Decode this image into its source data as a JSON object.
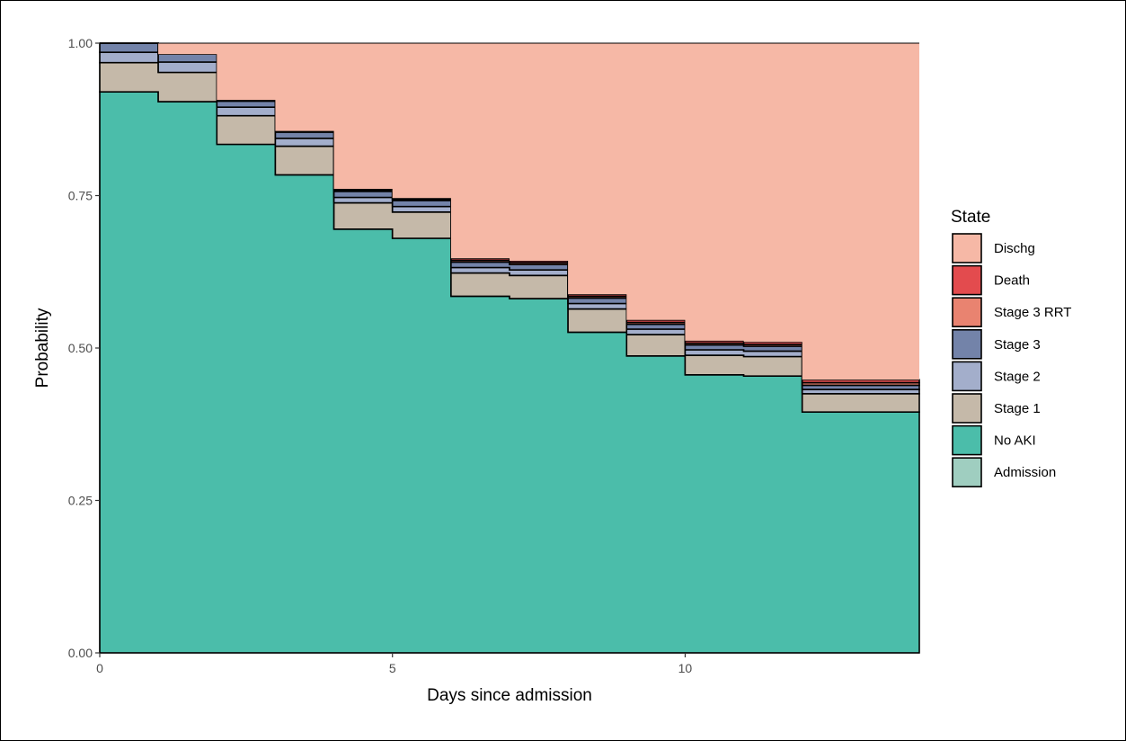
{
  "chart_data": {
    "type": "area",
    "stacked": true,
    "step": true,
    "xlabel": "Days since admission",
    "ylabel": "Probability",
    "xlim": [
      0,
      14
    ],
    "ylim": [
      0,
      1
    ],
    "x_ticks": [
      {
        "value": 0,
        "label": "0"
      },
      {
        "value": 5,
        "label": "5"
      },
      {
        "value": 10,
        "label": "10"
      }
    ],
    "y_ticks": [
      {
        "value": 0,
        "label": "0.00"
      },
      {
        "value": 0.25,
        "label": "0.25"
      },
      {
        "value": 0.5,
        "label": "0.50"
      },
      {
        "value": 0.75,
        "label": "0.75"
      },
      {
        "value": 1,
        "label": "1.00"
      }
    ],
    "grid": false,
    "legend": {
      "title": "State",
      "position": "right",
      "entries": [
        "Dischg",
        "Death",
        "Stage 3 RRT",
        "Stage 3",
        "Stage 2",
        "Stage 1",
        "No AKI",
        "Admission"
      ]
    },
    "x": [
      0,
      1,
      2,
      3,
      4,
      5,
      6,
      7,
      8,
      9,
      10,
      11,
      12,
      13
    ],
    "series": [
      {
        "name": "No AKI",
        "color": "#4BBDAA",
        "values": [
          0.92,
          0.904,
          0.834,
          0.784,
          0.695,
          0.68,
          0.585,
          0.581,
          0.526,
          0.487,
          0.456,
          0.454,
          0.395,
          0.395
        ]
      },
      {
        "name": "Stage 1",
        "color": "#C5B9A9",
        "values": [
          0.048,
          0.048,
          0.047,
          0.047,
          0.043,
          0.043,
          0.038,
          0.038,
          0.038,
          0.035,
          0.032,
          0.032,
          0.03,
          0.03
        ]
      },
      {
        "name": "Stage 2",
        "color": "#A3AECB",
        "values": [
          0.017,
          0.017,
          0.014,
          0.013,
          0.009,
          0.009,
          0.009,
          0.009,
          0.009,
          0.009,
          0.009,
          0.009,
          0.007,
          0.007
        ]
      },
      {
        "name": "Stage 3",
        "color": "#7383A9",
        "values": [
          0.015,
          0.013,
          0.01,
          0.01,
          0.01,
          0.01,
          0.009,
          0.009,
          0.009,
          0.008,
          0.008,
          0.008,
          0.007,
          0.007
        ]
      },
      {
        "name": "Stage 3 RRT",
        "color": "#E98370",
        "values": [
          0,
          0,
          0.001,
          0.001,
          0.002,
          0.002,
          0.003,
          0.003,
          0.003,
          0.003,
          0.003,
          0.003,
          0.004,
          0.004
        ]
      },
      {
        "name": "Death",
        "color": "#E34B4E",
        "values": [
          0,
          0,
          0.001,
          0.001,
          0.002,
          0.002,
          0.003,
          0.003,
          0.003,
          0.004,
          0.004,
          0.004,
          0.005,
          0.005
        ]
      },
      {
        "name": "Dischg",
        "color": "#F6B8A6",
        "values": [
          0,
          0.018,
          0.093,
          0.144,
          0.239,
          0.254,
          0.353,
          0.357,
          0.412,
          0.454,
          0.488,
          0.49,
          0.552,
          0.552
        ]
      },
      {
        "name": "Admission",
        "color": "#9FCEC0",
        "values": [
          0,
          0,
          0,
          0,
          0,
          0,
          0,
          0,
          0,
          0,
          0,
          0,
          0,
          0
        ]
      }
    ]
  }
}
